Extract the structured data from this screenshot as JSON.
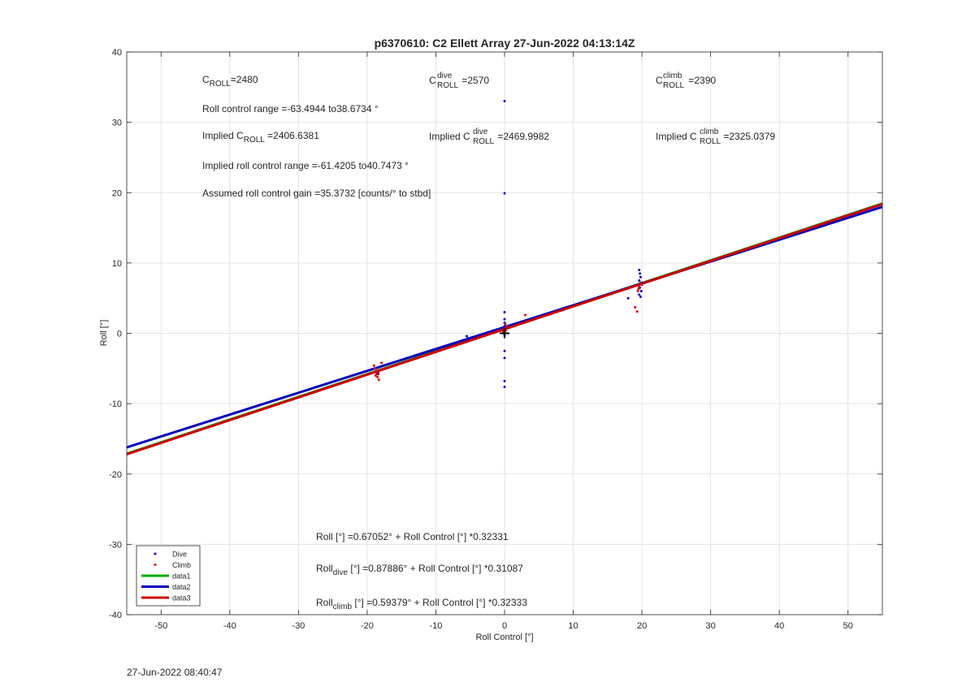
{
  "chart_data": {
    "type": "scatter",
    "title": "p6370610: C2 Ellett Array 27-Jun-2022 04:13:14Z",
    "xlabel": "Roll Control [°]",
    "ylabel": "Roll [°]",
    "xlim": [
      -55,
      55
    ],
    "ylim": [
      -40,
      40
    ],
    "xticks": [
      -50,
      -40,
      -30,
      -20,
      -10,
      0,
      10,
      20,
      30,
      40,
      50
    ],
    "yticks": [
      -40,
      -30,
      -20,
      -10,
      0,
      10,
      20,
      30,
      40
    ],
    "grid": true,
    "legend_position": "bottom-left",
    "series": [
      {
        "name": "Dive",
        "kind": "points",
        "color": "#0000cc",
        "points": [
          [
            0,
            33.0
          ],
          [
            0,
            19.9
          ],
          [
            0,
            3.0
          ],
          [
            0,
            2.0
          ],
          [
            0,
            1.5
          ],
          [
            0,
            1.0
          ],
          [
            0,
            0.5
          ],
          [
            0,
            -0.3
          ],
          [
            0,
            -2.5
          ],
          [
            0,
            -3.5
          ],
          [
            0,
            -6.8
          ],
          [
            0,
            -7.6
          ],
          [
            -5.5,
            -0.4
          ],
          [
            -5.3,
            -0.7
          ],
          [
            -18.8,
            -5.0
          ],
          [
            -18.6,
            -5.5
          ],
          [
            -18.4,
            -5.8
          ],
          [
            18.0,
            5.0
          ],
          [
            19.6,
            9.0
          ],
          [
            19.7,
            8.5
          ],
          [
            19.8,
            8.0
          ],
          [
            19.6,
            7.5
          ],
          [
            19.8,
            7.0
          ],
          [
            19.7,
            6.5
          ],
          [
            19.9,
            6.0
          ],
          [
            19.6,
            5.5
          ],
          [
            19.8,
            5.2
          ],
          [
            20.0,
            7.2
          ]
        ]
      },
      {
        "name": "Climb",
        "kind": "points",
        "color": "#dd0000",
        "points": [
          [
            -19.0,
            -4.6
          ],
          [
            -18.9,
            -5.0
          ],
          [
            -18.7,
            -5.4
          ],
          [
            -18.6,
            -5.8
          ],
          [
            -18.5,
            -6.2
          ],
          [
            -18.3,
            -6.6
          ],
          [
            -18.2,
            -5.2
          ],
          [
            -17.9,
            -4.2
          ],
          [
            -18.4,
            -5.6
          ],
          [
            -18.8,
            -6.0
          ],
          [
            0.2,
            0.4
          ],
          [
            0.3,
            0.9
          ],
          [
            0.1,
            1.3
          ],
          [
            -0.2,
            0.2
          ],
          [
            3.0,
            2.6
          ],
          [
            19.0,
            3.7
          ],
          [
            19.3,
            3.1
          ],
          [
            19.4,
            6.0
          ],
          [
            19.6,
            6.6
          ],
          [
            19.8,
            7.2
          ],
          [
            19.5,
            6.3
          ],
          [
            20.0,
            6.9
          ]
        ]
      },
      {
        "name": "data1",
        "kind": "line",
        "color": "#00aa00",
        "intercept": 0.67052,
        "slope": 0.32331
      },
      {
        "name": "data2",
        "kind": "line",
        "color": "#0000bb",
        "intercept": 0.87886,
        "slope": 0.31087
      },
      {
        "name": "data3",
        "kind": "line",
        "color": "#cc0000",
        "intercept": 0.59379,
        "slope": 0.32333
      }
    ],
    "marker": {
      "x": 0,
      "y": 0,
      "symbol": "+"
    },
    "annotations": {
      "c_roll": {
        "base": "C",
        "sub": "ROLL",
        "rest": "=2480"
      },
      "c_roll_dive": {
        "base": "C",
        "sup": "dive",
        "sub": "ROLL",
        "rest": " =2570"
      },
      "c_roll_climb": {
        "base": "C",
        "sup": "climb",
        "sub": "ROLL",
        "rest": " =2390"
      },
      "roll_range": "Roll control range =-63.4944 to38.6734 °",
      "implied_c_roll": {
        "pre": "Implied C",
        "sub": "ROLL",
        "rest": " =2406.6381"
      },
      "implied_c_dive": {
        "pre": "Implied C",
        "sup": "dive",
        "sub": "ROLL",
        "rest": " =2469.9982"
      },
      "implied_c_climb": {
        "pre": "Implied C",
        "sup": "climb",
        "sub": "ROLL",
        "rest": " =2325.0379"
      },
      "implied_range": "Implied roll control range =-61.4205 to40.7473 °",
      "gain": "Assumed roll control gain =35.3732 [counts/° to stbd]",
      "fit_all": "Roll [°] =0.67052° + Roll Control [°] *0.32331",
      "fit_dive": {
        "pre": "Roll",
        "sub": "dive",
        "rest": " [°] =0.87886° + Roll Control [°] *0.31087"
      },
      "fit_climb": {
        "pre": "Roll",
        "sub": "climb",
        "rest": " [°] =0.59379° + Roll Control [°] *0.32333"
      }
    }
  },
  "footer": {
    "timestamp": "27-Jun-2022 08:40:47"
  }
}
